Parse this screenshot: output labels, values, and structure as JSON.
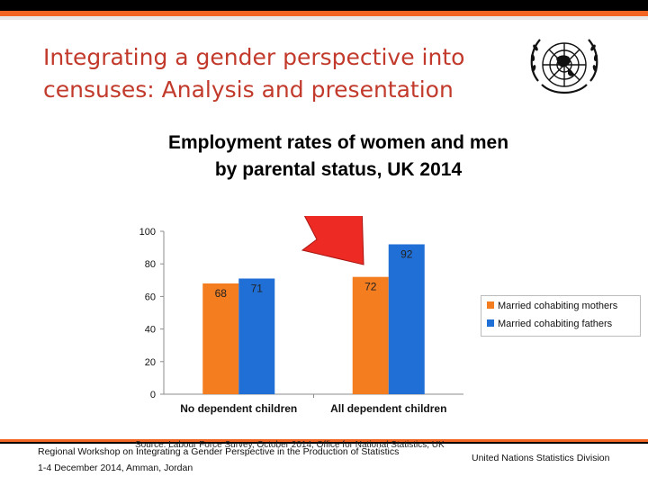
{
  "slide": {
    "title_line1": "Integrating a gender perspective into",
    "title_line2": "censuses: Analysis and presentation"
  },
  "logo": {
    "name": "un-emblem-icon"
  },
  "colors": {
    "accent": "#f26522",
    "title": "#c23a2b",
    "series_mothers": "#f47d20",
    "series_fathers": "#1f6fd6",
    "arrow": "#ee2a24"
  },
  "chart_data": {
    "type": "bar",
    "title_line1": "Employment rates of women and men",
    "title_line2": "by parental status, UK 2014",
    "categories": [
      "No dependent children",
      "All dependent children"
    ],
    "series": [
      {
        "name": "Married cohabiting mothers",
        "values": [
          68,
          72
        ]
      },
      {
        "name": "Married cohabiting fathers",
        "values": [
          71,
          92
        ]
      }
    ],
    "ylim": [
      0,
      100
    ],
    "yticks": [
      0,
      20,
      40,
      60,
      80,
      100
    ],
    "grid": false,
    "legend": "right",
    "annotation": "arrow-pointing-to-all-dependent-children"
  },
  "footer": {
    "source": "Source: Labour Force Survey, October 2014, Office for National Statistics, UK",
    "event_line1": "Regional Workshop on Integrating a Gender Perspective in the Production of Statistics",
    "event_line2": "1-4 December 2014, Amman, Jordan",
    "org": "United Nations Statistics Division"
  }
}
